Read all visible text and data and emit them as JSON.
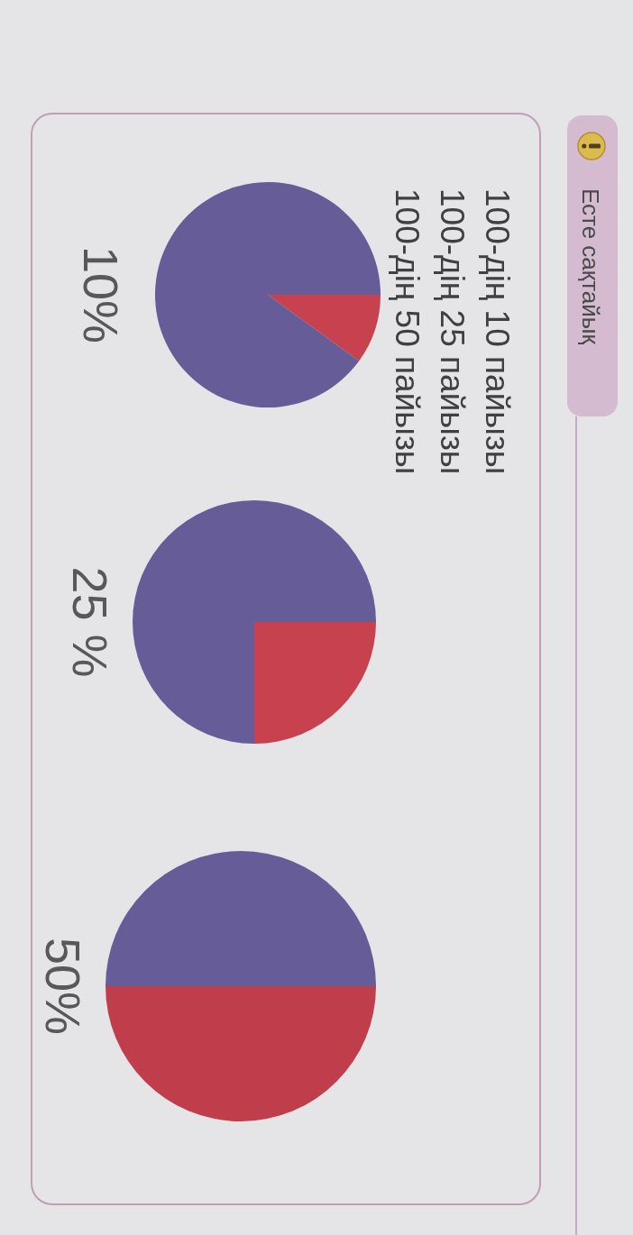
{
  "chart_data": [
    {
      "type": "other",
      "title": "Есте сақтайық",
      "annotations": [
        "100-дің 10 пайызы",
        "100-дің 25 пайызы",
        "100-дің 50 пайызы"
      ]
    },
    {
      "type": "pie",
      "title": "10%",
      "categories": [
        null,
        null
      ],
      "values": [
        10,
        90
      ],
      "colors": [
        "#c8414f",
        "#655c98"
      ]
    },
    {
      "type": "pie",
      "title": "25 %",
      "categories": [
        null,
        null
      ],
      "values": [
        25,
        75
      ],
      "colors": [
        "#c8414f",
        "#655c98"
      ]
    },
    {
      "type": "pie",
      "title": "50%",
      "categories": [
        null,
        null
      ],
      "values": [
        50,
        50
      ],
      "colors": [
        "#c03d4b",
        "#655c98"
      ]
    }
  ]
}
